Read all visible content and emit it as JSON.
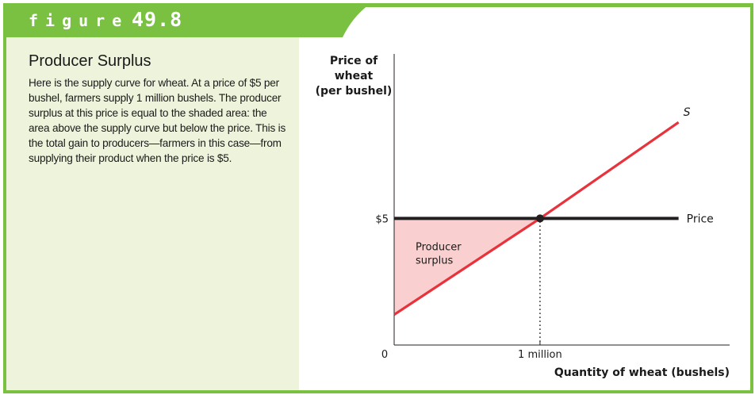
{
  "figure": {
    "word": "figure",
    "number": "49.8",
    "colors": {
      "header": "#7ac142",
      "panel": "#eef4dc",
      "border": "#7ac142"
    }
  },
  "panel": {
    "title": "Producer Surplus",
    "body": "Here is the supply curve for wheat. At a price of $5 per bushel, farmers supply 1 million bushels. The producer surplus at this price is equal to the shaded area: the area above the supply curve but below the price. This is the total gain to producers—farmers in this case—from supplying their product when the price is $5."
  },
  "chart_data": {
    "type": "line",
    "xlabel": "Quantity of wheat (bushels)",
    "ylabel_lines": [
      "Price of",
      "wheat",
      "(per bushel)"
    ],
    "x_ticks": [
      {
        "value": 0,
        "label": "0"
      },
      {
        "value": 1,
        "label": "1 million"
      }
    ],
    "y_ticks": [
      {
        "value": 5,
        "label": "$5"
      }
    ],
    "xlim": [
      0,
      2.3
    ],
    "ylim": [
      0,
      11.5
    ],
    "series": [
      {
        "name": "S",
        "x": [
          0,
          1,
          1.95
        ],
        "y": [
          1.2,
          5,
          8.8
        ],
        "color": "#e8323c"
      },
      {
        "name": "Price",
        "x": [
          0,
          1.95
        ],
        "y": [
          5,
          5
        ],
        "color": "#231f20"
      }
    ],
    "equilibrium": {
      "x": 1,
      "y": 5
    },
    "shaded_region": {
      "label_lines": [
        "Producer",
        "surplus"
      ],
      "color": "#f9d0cf",
      "vertices": [
        [
          0,
          1.2
        ],
        [
          1,
          5
        ],
        [
          0,
          5
        ]
      ]
    },
    "grid": false,
    "legend": "none"
  }
}
